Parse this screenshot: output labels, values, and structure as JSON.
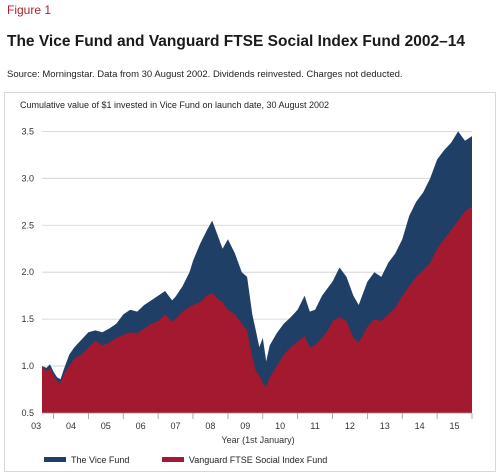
{
  "figure_label": "Figure 1",
  "title": "The Vice Fund and Vanguard FTSE Social Index Fund 2002–14",
  "source": "Source: Morningstar. Data from 30 August 2002. Dividends reinvested. Charges not deducted.",
  "colors": {
    "vice": "#1f3f66",
    "vanguard": "#a3192f",
    "figure_label": "#b0202e"
  },
  "chart_data": {
    "type": "area",
    "subtitle": "Cumulative value  of $1 invested in Vice Fund on launch date, 30 August 2002",
    "xlabel": "Year (1st January)",
    "ylabel": "",
    "x_ticks": [
      "03",
      "04",
      "05",
      "06",
      "07",
      "08",
      "09",
      "10",
      "11",
      "12",
      "13",
      "14",
      "15"
    ],
    "y_ticks": [
      "0.5",
      "1.0",
      "1.5",
      "2.0",
      "2.5",
      "3.0",
      "3.5"
    ],
    "ylim": [
      0.5,
      3.6
    ],
    "xlim": [
      2002.67,
      2015.0
    ],
    "grid": "horizontal",
    "legend_position": "bottom",
    "x": [
      2002.67,
      2002.8,
      2002.9,
      2003.0,
      2003.1,
      2003.2,
      2003.3,
      2003.45,
      2003.6,
      2003.8,
      2004.0,
      2004.2,
      2004.4,
      2004.6,
      2004.8,
      2005.0,
      2005.2,
      2005.4,
      2005.6,
      2005.8,
      2006.0,
      2006.2,
      2006.4,
      2006.5,
      2006.7,
      2006.9,
      2007.0,
      2007.2,
      2007.4,
      2007.55,
      2007.7,
      2007.85,
      2008.0,
      2008.2,
      2008.4,
      2008.55,
      2008.7,
      2008.8,
      2008.9,
      2009.0,
      2009.1,
      2009.2,
      2009.4,
      2009.6,
      2009.8,
      2010.0,
      2010.2,
      2010.35,
      2010.5,
      2010.7,
      2010.9,
      2011.0,
      2011.2,
      2011.4,
      2011.6,
      2011.75,
      2011.9,
      2012.0,
      2012.2,
      2012.4,
      2012.6,
      2012.8,
      2013.0,
      2013.2,
      2013.4,
      2013.6,
      2013.8,
      2014.0,
      2014.2,
      2014.4,
      2014.6,
      2014.8,
      2015.0
    ],
    "series": [
      {
        "name": "The Vice Fund",
        "values": [
          1.0,
          0.98,
          1.02,
          0.94,
          0.88,
          0.86,
          0.97,
          1.12,
          1.2,
          1.28,
          1.36,
          1.38,
          1.36,
          1.4,
          1.45,
          1.55,
          1.6,
          1.58,
          1.65,
          1.7,
          1.75,
          1.8,
          1.7,
          1.74,
          1.85,
          2.0,
          2.12,
          2.3,
          2.45,
          2.55,
          2.4,
          2.25,
          2.35,
          2.2,
          2.0,
          1.95,
          1.55,
          1.38,
          1.2,
          1.3,
          1.05,
          1.22,
          1.35,
          1.45,
          1.52,
          1.6,
          1.75,
          1.58,
          1.6,
          1.75,
          1.85,
          1.9,
          2.05,
          1.95,
          1.75,
          1.65,
          1.8,
          1.9,
          2.0,
          1.95,
          2.1,
          2.2,
          2.35,
          2.6,
          2.75,
          2.85,
          3.0,
          3.2,
          3.3,
          3.38,
          3.5,
          3.4,
          3.45
        ]
      },
      {
        "name": "Vanguard FTSE Social Index Fund",
        "values": [
          1.0,
          0.95,
          0.98,
          0.9,
          0.84,
          0.82,
          0.92,
          1.0,
          1.08,
          1.12,
          1.2,
          1.27,
          1.22,
          1.25,
          1.3,
          1.33,
          1.36,
          1.35,
          1.4,
          1.45,
          1.48,
          1.55,
          1.47,
          1.5,
          1.58,
          1.63,
          1.65,
          1.68,
          1.75,
          1.78,
          1.72,
          1.68,
          1.6,
          1.55,
          1.45,
          1.38,
          1.1,
          0.95,
          0.9,
          0.82,
          0.78,
          0.88,
          1.0,
          1.12,
          1.2,
          1.26,
          1.32,
          1.2,
          1.22,
          1.3,
          1.4,
          1.48,
          1.52,
          1.48,
          1.3,
          1.25,
          1.35,
          1.42,
          1.5,
          1.48,
          1.55,
          1.62,
          1.75,
          1.85,
          1.95,
          2.02,
          2.1,
          2.25,
          2.35,
          2.45,
          2.55,
          2.65,
          2.7
        ]
      }
    ]
  }
}
